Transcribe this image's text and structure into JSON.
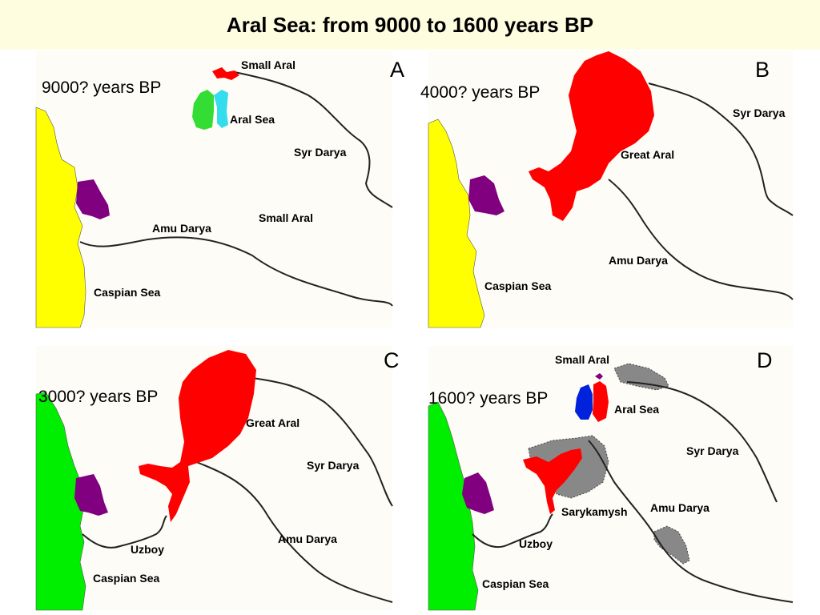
{
  "title": "Aral Sea: from 9000 to 1600 years BP",
  "colors": {
    "caspian_early": "#ffff00",
    "caspian_late": "#00ee00",
    "lake_purple": "#800080",
    "aral_red": "#ff0000",
    "aral_green": "#33dd33",
    "aral_cyan": "#33ddee",
    "aral_blue": "#0022dd",
    "dry_gray": "#888888",
    "river": "#222222"
  },
  "panels": {
    "A": {
      "letter": "A",
      "age": "9000? years BP",
      "labels": {
        "small_aral_top": "Small Aral",
        "aral_sea": "Aral Sea",
        "syr_darya": "Syr Darya",
        "small_aral": "Small Aral",
        "amu_darya": "Amu Darya",
        "caspian_sea": "Caspian Sea"
      }
    },
    "B": {
      "letter": "B",
      "age": "4000? years BP",
      "labels": {
        "syr_darya": "Syr Darya",
        "great_aral": "Great Aral",
        "amu_darya": "Amu Darya",
        "caspian_sea": "Caspian Sea"
      }
    },
    "C": {
      "letter": "C",
      "age": "3000? years BP",
      "labels": {
        "great_aral": "Great Aral",
        "syr_darya": "Syr Darya",
        "amu_darya": "Amu Darya",
        "uzboy": "Uzboy",
        "caspian_sea": "Caspian Sea"
      }
    },
    "D": {
      "letter": "D",
      "age": "1600? years BP",
      "labels": {
        "small_aral": "Small Aral",
        "aral_sea": "Aral Sea",
        "syr_darya": "Syr Darya",
        "amu_darya": "Amu Darya",
        "sarykamysh": "Sarykamysh",
        "uzboy": "Uzboy",
        "caspian_sea": "Caspian Sea"
      }
    }
  }
}
